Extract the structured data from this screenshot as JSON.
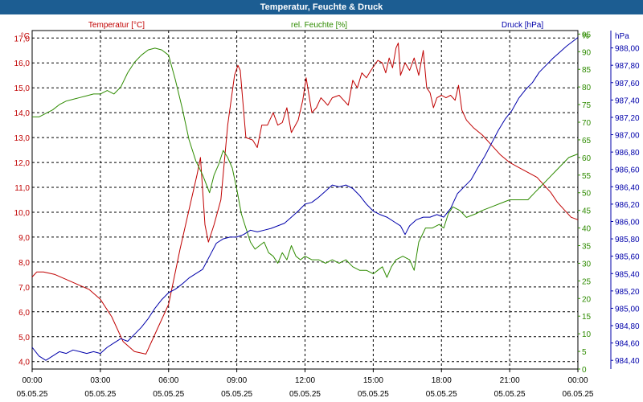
{
  "window": {
    "title": "Temperatur, Feuchte & Druck",
    "title_bg": "#1c5d92"
  },
  "chart_data": {
    "type": "line",
    "title": "Temperatur, Feuchte & Druck",
    "grid": true,
    "x_ticks": [
      {
        "time": "00:00",
        "date": "05.05.25"
      },
      {
        "time": "03:00",
        "date": "05.05.25"
      },
      {
        "time": "06:00",
        "date": "05.05.25"
      },
      {
        "time": "09:00",
        "date": "05.05.25"
      },
      {
        "time": "12:00",
        "date": "05.05.25"
      },
      {
        "time": "15:00",
        "date": "05.05.25"
      },
      {
        "time": "18:00",
        "date": "05.05.25"
      },
      {
        "time": "21:00",
        "date": "05.05.25"
      },
      {
        "time": "00:00",
        "date": "06.05.25"
      }
    ],
    "x_range_hours": [
      0,
      24
    ],
    "axes": {
      "temperature": {
        "label": "Temperatur [°C]",
        "unit": "°C",
        "color": "#c00000",
        "range": [
          3.7,
          17.3
        ],
        "ticks": [
          "4,0",
          "5,0",
          "6,0",
          "7,0",
          "8,0",
          "9,0",
          "10,0",
          "11,0",
          "12,0",
          "13,0",
          "14,0",
          "15,0",
          "16,0",
          "17,0"
        ],
        "tick_values": [
          4,
          5,
          6,
          7,
          8,
          9,
          10,
          11,
          12,
          13,
          14,
          15,
          16,
          17
        ]
      },
      "humidity": {
        "label": "rel. Feuchte [%]",
        "unit": "%",
        "color": "#2e8b00",
        "range": [
          0,
          96
        ],
        "ticks": [
          "0",
          "5",
          "10",
          "15",
          "20",
          "25",
          "30",
          "35",
          "40",
          "45",
          "50",
          "55",
          "60",
          "65",
          "70",
          "75",
          "80",
          "85",
          "90",
          "95"
        ],
        "tick_values": [
          0,
          5,
          10,
          15,
          20,
          25,
          30,
          35,
          40,
          45,
          50,
          55,
          60,
          65,
          70,
          75,
          80,
          85,
          90,
          95
        ]
      },
      "pressure": {
        "label": "Druck [hPa]",
        "unit": "hPa",
        "color": "#0000aa",
        "range": [
          984.3,
          988.2
        ],
        "ticks": [
          "984,40",
          "984,60",
          "984,80",
          "985,00",
          "985,20",
          "985,40",
          "985,60",
          "985,80",
          "986,00",
          "986,20",
          "986,40",
          "986,60",
          "986,80",
          "987,00",
          "987,20",
          "987,40",
          "987,60",
          "987,80",
          "988,00"
        ],
        "tick_values": [
          984.4,
          984.6,
          984.8,
          985.0,
          985.2,
          985.4,
          985.6,
          985.8,
          986.0,
          986.2,
          986.4,
          986.6,
          986.8,
          987.0,
          987.2,
          987.4,
          987.6,
          987.8,
          988.0
        ]
      }
    },
    "series": [
      {
        "name": "Temperatur [°C]",
        "axis": "temperature",
        "color": "#c00000",
        "points": [
          [
            0,
            7.4
          ],
          [
            0.2,
            7.6
          ],
          [
            0.5,
            7.6
          ],
          [
            1,
            7.5
          ],
          [
            1.5,
            7.3
          ],
          [
            2,
            7.1
          ],
          [
            2.5,
            6.9
          ],
          [
            3,
            6.5
          ],
          [
            3.5,
            5.8
          ],
          [
            4,
            4.8
          ],
          [
            4.5,
            4.4
          ],
          [
            5,
            4.3
          ],
          [
            5.5,
            5.3
          ],
          [
            6,
            6.3
          ],
          [
            6.5,
            8.5
          ],
          [
            7,
            10.5
          ],
          [
            7.25,
            11.5
          ],
          [
            7.4,
            12.2
          ],
          [
            7.6,
            9.5
          ],
          [
            7.75,
            8.8
          ],
          [
            8,
            9.5
          ],
          [
            8.3,
            10.5
          ],
          [
            8.6,
            13.5
          ],
          [
            8.9,
            15.5
          ],
          [
            9.05,
            15.9
          ],
          [
            9.15,
            15.7
          ],
          [
            9.4,
            13.0
          ],
          [
            9.7,
            12.9
          ],
          [
            9.9,
            12.6
          ],
          [
            10.1,
            13.5
          ],
          [
            10.35,
            13.5
          ],
          [
            10.6,
            14.0
          ],
          [
            10.8,
            13.5
          ],
          [
            11.0,
            13.6
          ],
          [
            11.2,
            14.2
          ],
          [
            11.4,
            13.2
          ],
          [
            11.7,
            13.7
          ],
          [
            11.9,
            14.5
          ],
          [
            12.05,
            15.4
          ],
          [
            12.3,
            14.0
          ],
          [
            12.5,
            14.2
          ],
          [
            12.7,
            14.6
          ],
          [
            13.0,
            14.3
          ],
          [
            13.2,
            14.6
          ],
          [
            13.5,
            14.7
          ],
          [
            13.7,
            14.5
          ],
          [
            13.9,
            14.3
          ],
          [
            14.1,
            15.3
          ],
          [
            14.3,
            15.0
          ],
          [
            14.5,
            15.6
          ],
          [
            14.7,
            15.4
          ],
          [
            14.9,
            15.7
          ],
          [
            15.2,
            16.1
          ],
          [
            15.4,
            16.0
          ],
          [
            15.55,
            15.6
          ],
          [
            15.7,
            16.2
          ],
          [
            15.85,
            15.8
          ],
          [
            16.0,
            16.6
          ],
          [
            16.1,
            16.8
          ],
          [
            16.2,
            15.5
          ],
          [
            16.4,
            16.0
          ],
          [
            16.6,
            15.7
          ],
          [
            16.8,
            16.2
          ],
          [
            17.0,
            15.5
          ],
          [
            17.2,
            16.5
          ],
          [
            17.35,
            15.0
          ],
          [
            17.5,
            14.8
          ],
          [
            17.65,
            14.2
          ],
          [
            17.8,
            14.6
          ],
          [
            18.0,
            14.7
          ],
          [
            18.2,
            14.6
          ],
          [
            18.4,
            14.7
          ],
          [
            18.6,
            14.5
          ],
          [
            18.75,
            15.1
          ],
          [
            18.9,
            14.1
          ],
          [
            19.1,
            13.7
          ],
          [
            19.4,
            13.4
          ],
          [
            19.8,
            13.1
          ],
          [
            20.2,
            12.7
          ],
          [
            20.6,
            12.3
          ],
          [
            21.0,
            12.0
          ],
          [
            21.4,
            11.8
          ],
          [
            21.8,
            11.6
          ],
          [
            22.2,
            11.4
          ],
          [
            22.5,
            11.1
          ],
          [
            22.8,
            10.8
          ],
          [
            23.1,
            10.4
          ],
          [
            23.4,
            10.1
          ],
          [
            23.7,
            9.8
          ],
          [
            24.0,
            9.7
          ]
        ]
      },
      {
        "name": "rel. Feuchte [%]",
        "axis": "humidity",
        "color": "#2e8b00",
        "points": [
          [
            0,
            71.5
          ],
          [
            0.3,
            71.5
          ],
          [
            0.6,
            72.5
          ],
          [
            0.9,
            73.5
          ],
          [
            1.2,
            75
          ],
          [
            1.5,
            76
          ],
          [
            1.8,
            76.5
          ],
          [
            2.1,
            77
          ],
          [
            2.4,
            77.5
          ],
          [
            2.7,
            78
          ],
          [
            3.0,
            78
          ],
          [
            3.3,
            79
          ],
          [
            3.6,
            78
          ],
          [
            3.9,
            80
          ],
          [
            4.2,
            84
          ],
          [
            4.5,
            87
          ],
          [
            4.8,
            89
          ],
          [
            5.1,
            90.5
          ],
          [
            5.4,
            91
          ],
          [
            5.7,
            90.5
          ],
          [
            6.0,
            89
          ],
          [
            6.3,
            82
          ],
          [
            6.6,
            74
          ],
          [
            6.9,
            65
          ],
          [
            7.2,
            59
          ],
          [
            7.5,
            55
          ],
          [
            7.8,
            50
          ],
          [
            8.0,
            55
          ],
          [
            8.2,
            58
          ],
          [
            8.4,
            62
          ],
          [
            8.6,
            60
          ],
          [
            8.8,
            57
          ],
          [
            9.0,
            51
          ],
          [
            9.2,
            44
          ],
          [
            9.4,
            40
          ],
          [
            9.6,
            36
          ],
          [
            9.8,
            34
          ],
          [
            10.0,
            35
          ],
          [
            10.2,
            36
          ],
          [
            10.4,
            33
          ],
          [
            10.6,
            32
          ],
          [
            10.8,
            30
          ],
          [
            11.0,
            33
          ],
          [
            11.2,
            31
          ],
          [
            11.4,
            35
          ],
          [
            11.6,
            32
          ],
          [
            11.8,
            31
          ],
          [
            12.0,
            32
          ],
          [
            12.3,
            31
          ],
          [
            12.6,
            31
          ],
          [
            12.9,
            30
          ],
          [
            13.2,
            31
          ],
          [
            13.5,
            30
          ],
          [
            13.8,
            31
          ],
          [
            14.1,
            29
          ],
          [
            14.4,
            28
          ],
          [
            14.7,
            28
          ],
          [
            15.0,
            27
          ],
          [
            15.2,
            28
          ],
          [
            15.4,
            29
          ],
          [
            15.6,
            26
          ],
          [
            15.8,
            29
          ],
          [
            16.0,
            31
          ],
          [
            16.3,
            32
          ],
          [
            16.6,
            31
          ],
          [
            16.8,
            28
          ],
          [
            17.0,
            36
          ],
          [
            17.3,
            40
          ],
          [
            17.6,
            40
          ],
          [
            17.9,
            41
          ],
          [
            18.1,
            40
          ],
          [
            18.3,
            44
          ],
          [
            18.5,
            46
          ],
          [
            18.8,
            45
          ],
          [
            19.1,
            43
          ],
          [
            19.5,
            44
          ],
          [
            19.8,
            45
          ],
          [
            20.2,
            46
          ],
          [
            20.6,
            47
          ],
          [
            21.0,
            48
          ],
          [
            21.4,
            48
          ],
          [
            21.8,
            48
          ],
          [
            22.1,
            50
          ],
          [
            22.4,
            52
          ],
          [
            22.7,
            54
          ],
          [
            23.0,
            56
          ],
          [
            23.3,
            58
          ],
          [
            23.6,
            60
          ],
          [
            24.0,
            61
          ]
        ]
      },
      {
        "name": "Druck [hPa]",
        "axis": "pressure",
        "color": "#0000aa",
        "points": [
          [
            0,
            984.55
          ],
          [
            0.3,
            984.45
          ],
          [
            0.6,
            984.4
          ],
          [
            0.9,
            984.45
          ],
          [
            1.2,
            984.5
          ],
          [
            1.5,
            984.48
          ],
          [
            1.8,
            984.52
          ],
          [
            2.1,
            984.5
          ],
          [
            2.4,
            984.48
          ],
          [
            2.7,
            984.5
          ],
          [
            3.0,
            984.48
          ],
          [
            3.3,
            984.55
          ],
          [
            3.6,
            984.6
          ],
          [
            3.9,
            984.65
          ],
          [
            4.2,
            984.62
          ],
          [
            4.5,
            984.7
          ],
          [
            4.8,
            984.78
          ],
          [
            5.1,
            984.88
          ],
          [
            5.4,
            985.0
          ],
          [
            5.7,
            985.1
          ],
          [
            6.0,
            985.18
          ],
          [
            6.3,
            985.22
          ],
          [
            6.6,
            985.28
          ],
          [
            6.9,
            985.35
          ],
          [
            7.2,
            985.4
          ],
          [
            7.5,
            985.45
          ],
          [
            7.8,
            985.6
          ],
          [
            8.1,
            985.75
          ],
          [
            8.4,
            985.8
          ],
          [
            8.7,
            985.82
          ],
          [
            9.0,
            985.82
          ],
          [
            9.3,
            985.85
          ],
          [
            9.6,
            985.9
          ],
          [
            9.9,
            985.88
          ],
          [
            10.2,
            985.9
          ],
          [
            10.5,
            985.92
          ],
          [
            10.8,
            985.95
          ],
          [
            11.1,
            985.98
          ],
          [
            11.4,
            986.05
          ],
          [
            11.7,
            986.12
          ],
          [
            12.0,
            986.2
          ],
          [
            12.3,
            986.22
          ],
          [
            12.6,
            986.28
          ],
          [
            12.9,
            986.35
          ],
          [
            13.2,
            986.42
          ],
          [
            13.5,
            986.4
          ],
          [
            13.8,
            986.42
          ],
          [
            14.1,
            986.38
          ],
          [
            14.4,
            986.3
          ],
          [
            14.7,
            986.2
          ],
          [
            15.0,
            986.12
          ],
          [
            15.3,
            986.08
          ],
          [
            15.6,
            986.05
          ],
          [
            15.9,
            986.0
          ],
          [
            16.2,
            985.95
          ],
          [
            16.4,
            985.85
          ],
          [
            16.6,
            985.95
          ],
          [
            16.9,
            986.02
          ],
          [
            17.2,
            986.05
          ],
          [
            17.5,
            986.05
          ],
          [
            17.8,
            986.08
          ],
          [
            18.1,
            986.05
          ],
          [
            18.4,
            986.15
          ],
          [
            18.7,
            986.32
          ],
          [
            19.0,
            986.4
          ],
          [
            19.3,
            986.48
          ],
          [
            19.6,
            986.62
          ],
          [
            19.9,
            986.75
          ],
          [
            20.2,
            986.9
          ],
          [
            20.5,
            987.05
          ],
          [
            20.8,
            987.18
          ],
          [
            21.1,
            987.28
          ],
          [
            21.4,
            987.42
          ],
          [
            21.7,
            987.52
          ],
          [
            22.0,
            987.6
          ],
          [
            22.3,
            987.72
          ],
          [
            22.6,
            987.8
          ],
          [
            22.9,
            987.88
          ],
          [
            23.2,
            987.95
          ],
          [
            23.5,
            988.02
          ],
          [
            23.8,
            988.08
          ],
          [
            24.0,
            988.12
          ]
        ]
      }
    ]
  }
}
